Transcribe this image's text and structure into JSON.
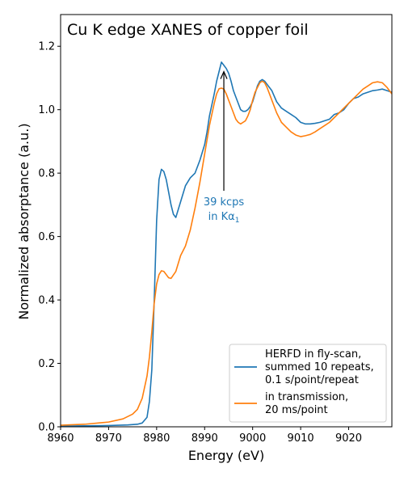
{
  "chart_data": {
    "type": "line",
    "title": "Cu K edge XANES of copper foil",
    "xlabel": "Energy (eV)",
    "ylabel": "Normalized absorptance (a.u.)",
    "xlim": [
      8960,
      9029
    ],
    "ylim": [
      0.0,
      1.3
    ],
    "xticks": [
      8960,
      8970,
      8980,
      8990,
      9000,
      9010,
      9020
    ],
    "yticks": [
      0.0,
      0.2,
      0.4,
      0.6,
      0.8,
      1.0,
      1.2
    ],
    "xtick_labels": [
      "8960",
      "8970",
      "8980",
      "8990",
      "9000",
      "9010",
      "9020"
    ],
    "ytick_labels": [
      "0.0",
      "0.2",
      "0.4",
      "0.6",
      "0.8",
      "1.0",
      "1.2"
    ],
    "grid": false,
    "legend_position": "bottom-right",
    "legend_labels": [
      [
        "HERFD in fly-scan,",
        "summed 10 repeats,",
        "0.1 s/point/repeat"
      ],
      [
        "in transmission,",
        "20 ms/point"
      ]
    ],
    "annotation": {
      "lines": [
        "39 kcps",
        "in Kα"
      ],
      "subscript": "1",
      "x": 8994,
      "y": 1.12,
      "text_x": 8994,
      "text_y": 0.67
    },
    "series": [
      {
        "color": "#1f77b4",
        "x": [
          8960,
          8965,
          8970,
          8974,
          8976,
          8977,
          8978,
          8978.5,
          8979,
          8979.5,
          8980,
          8980.5,
          8981,
          8981.5,
          8982,
          8982.5,
          8983,
          8983.5,
          8984,
          8985,
          8986,
          8987,
          8988,
          8989,
          8990,
          8990.5,
          8991,
          8992,
          8992.5,
          8993,
          8993.5,
          8994,
          8994.5,
          8995,
          8995.5,
          8996,
          8996.5,
          8997,
          8997.5,
          8998,
          8998.5,
          8999,
          8999.5,
          9000,
          9000.5,
          9001,
          9001.5,
          9002,
          9002.5,
          9003,
          9003.5,
          9004,
          9005,
          9006,
          9007,
          9008,
          9009,
          9010,
          9011,
          9012,
          9013,
          9014,
          9015,
          9016,
          9017,
          9018,
          9019,
          9020,
          9021,
          9022,
          9023,
          9024,
          9025,
          9026,
          9027,
          9028,
          9029
        ],
        "values": [
          0.002,
          0.003,
          0.004,
          0.006,
          0.008,
          0.012,
          0.03,
          0.08,
          0.18,
          0.4,
          0.65,
          0.78,
          0.812,
          0.805,
          0.78,
          0.74,
          0.7,
          0.67,
          0.66,
          0.71,
          0.76,
          0.785,
          0.8,
          0.84,
          0.89,
          0.93,
          0.98,
          1.05,
          1.09,
          1.12,
          1.15,
          1.14,
          1.13,
          1.115,
          1.09,
          1.06,
          1.04,
          1.02,
          1.0,
          0.995,
          0.995,
          1.0,
          1.01,
          1.025,
          1.05,
          1.075,
          1.09,
          1.095,
          1.09,
          1.08,
          1.07,
          1.06,
          1.025,
          1.005,
          0.995,
          0.985,
          0.975,
          0.96,
          0.955,
          0.955,
          0.957,
          0.96,
          0.965,
          0.97,
          0.985,
          0.99,
          1.0,
          1.02,
          1.035,
          1.04,
          1.05,
          1.055,
          1.06,
          1.062,
          1.065,
          1.06,
          1.055
        ]
      },
      {
        "color": "#ff7f0e",
        "x": [
          8960,
          8965,
          8970,
          8973,
          8975,
          8976,
          8977,
          8978,
          8978.5,
          8979,
          8979.5,
          8980,
          8980.5,
          8981,
          8981.5,
          8982,
          8982.5,
          8983,
          8984,
          8985,
          8986,
          8987,
          8988,
          8989,
          8990,
          8991,
          8992,
          8992.5,
          8993,
          8993.5,
          8994,
          8994.5,
          8995,
          8995.5,
          8996,
          8996.5,
          8997,
          8997.5,
          8998,
          8998.5,
          8999,
          8999.5,
          9000,
          9000.5,
          9001,
          9001.5,
          9002,
          9002.5,
          9003,
          9003.5,
          9004,
          9005,
          9006,
          9007,
          9008,
          9009,
          9010,
          9011,
          9012,
          9013,
          9014,
          9015,
          9016,
          9017,
          9018,
          9019,
          9020,
          9021,
          9022,
          9023,
          9024,
          9025,
          9026,
          9027,
          9028,
          9029
        ],
        "values": [
          0.005,
          0.008,
          0.015,
          0.025,
          0.04,
          0.055,
          0.09,
          0.16,
          0.22,
          0.3,
          0.39,
          0.45,
          0.48,
          0.492,
          0.49,
          0.48,
          0.47,
          0.468,
          0.49,
          0.54,
          0.57,
          0.62,
          0.69,
          0.77,
          0.86,
          0.95,
          1.02,
          1.05,
          1.066,
          1.068,
          1.065,
          1.05,
          1.03,
          1.01,
          0.99,
          0.97,
          0.96,
          0.955,
          0.96,
          0.965,
          0.98,
          1.0,
          1.03,
          1.055,
          1.07,
          1.085,
          1.09,
          1.085,
          1.07,
          1.05,
          1.03,
          0.99,
          0.96,
          0.945,
          0.93,
          0.92,
          0.915,
          0.918,
          0.922,
          0.93,
          0.94,
          0.95,
          0.96,
          0.975,
          0.99,
          1.005,
          1.02,
          1.035,
          1.05,
          1.065,
          1.075,
          1.085,
          1.088,
          1.085,
          1.07,
          1.05
        ]
      }
    ]
  }
}
